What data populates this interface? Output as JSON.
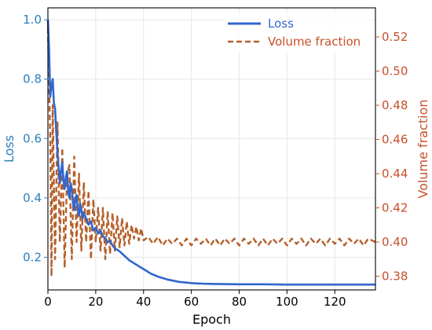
{
  "chart_data": {
    "type": "line",
    "xlabel": "Epoch",
    "ylabel_left": "Loss",
    "ylabel_right": "Volume fraction",
    "xlim": [
      0,
      137
    ],
    "ylim_left": [
      0.09,
      1.04
    ],
    "ylim_right": [
      0.372,
      0.537
    ],
    "xticks": [
      0,
      20,
      40,
      60,
      80,
      100,
      120
    ],
    "yticks_left": [
      0.2,
      0.4,
      0.6,
      0.8,
      1.0
    ],
    "yticks_right": [
      0.38,
      0.4,
      0.42,
      0.44,
      0.46,
      0.48,
      0.5,
      0.52
    ],
    "grid": true,
    "legend_position": "top-right",
    "colors": {
      "loss": "#3366cc",
      "volume": "#b5602b",
      "left_axis": "#2a7fb8",
      "right_axis": "#c8502a"
    },
    "series": [
      {
        "name": "Loss",
        "axis": "left",
        "style": "solid",
        "x": [
          0,
          0.5,
          1,
          1.5,
          2,
          2.5,
          3,
          3.5,
          4,
          4.5,
          5,
          5.5,
          6,
          6.5,
          7,
          7.5,
          8,
          8.5,
          9,
          9.5,
          10,
          10.5,
          11,
          11.5,
          12,
          12.5,
          13,
          13.5,
          14,
          14.5,
          15,
          16,
          17,
          18,
          19,
          20,
          21,
          22,
          23,
          24,
          25,
          26,
          27,
          28,
          29,
          30,
          32,
          34,
          36,
          38,
          40,
          43,
          46,
          50,
          55,
          60,
          65,
          70,
          80,
          90,
          100,
          110,
          120,
          130,
          137
        ],
        "y": [
          1.0,
          0.9,
          0.74,
          0.78,
          0.8,
          0.72,
          0.7,
          0.62,
          0.55,
          0.5,
          0.45,
          0.49,
          0.52,
          0.46,
          0.43,
          0.47,
          0.49,
          0.42,
          0.4,
          0.45,
          0.43,
          0.38,
          0.36,
          0.4,
          0.41,
          0.36,
          0.34,
          0.38,
          0.36,
          0.33,
          0.35,
          0.33,
          0.31,
          0.32,
          0.29,
          0.3,
          0.28,
          0.29,
          0.27,
          0.265,
          0.25,
          0.255,
          0.24,
          0.23,
          0.225,
          0.22,
          0.205,
          0.19,
          0.18,
          0.17,
          0.16,
          0.145,
          0.135,
          0.125,
          0.117,
          0.113,
          0.111,
          0.11,
          0.109,
          0.109,
          0.108,
          0.108,
          0.108,
          0.108,
          0.108
        ]
      },
      {
        "name": "Volume fraction",
        "axis": "right",
        "style": "dashed",
        "x": [
          0,
          1,
          1.5,
          2,
          3,
          4,
          5,
          6,
          7,
          8,
          9,
          10,
          11,
          12,
          13,
          14,
          15,
          16,
          17,
          18,
          19,
          20,
          21,
          22,
          23,
          24,
          25,
          26,
          27,
          28,
          29,
          30,
          31,
          32,
          33,
          34,
          35,
          36,
          37,
          38,
          39,
          40,
          42,
          44,
          46,
          48,
          50,
          52,
          54,
          56,
          58,
          60,
          62,
          64,
          66,
          68,
          70,
          72,
          74,
          76,
          78,
          80,
          82,
          84,
          86,
          88,
          90,
          92,
          94,
          96,
          98,
          100,
          102,
          104,
          106,
          108,
          110,
          112,
          114,
          116,
          118,
          120,
          122,
          124,
          126,
          128,
          130,
          132,
          134,
          137
        ],
        "y": [
          0.525,
          0.46,
          0.38,
          0.48,
          0.39,
          0.47,
          0.4,
          0.455,
          0.385,
          0.44,
          0.445,
          0.39,
          0.45,
          0.4,
          0.44,
          0.395,
          0.435,
          0.4,
          0.43,
          0.39,
          0.425,
          0.4,
          0.42,
          0.395,
          0.42,
          0.39,
          0.418,
          0.393,
          0.417,
          0.395,
          0.415,
          0.397,
          0.414,
          0.398,
          0.412,
          0.399,
          0.41,
          0.402,
          0.409,
          0.401,
          0.408,
          0.401,
          0.403,
          0.399,
          0.403,
          0.398,
          0.402,
          0.399,
          0.402,
          0.398,
          0.402,
          0.398,
          0.402,
          0.399,
          0.402,
          0.398,
          0.402,
          0.398,
          0.402,
          0.399,
          0.402,
          0.398,
          0.402,
          0.399,
          0.402,
          0.398,
          0.402,
          0.398,
          0.402,
          0.399,
          0.402,
          0.398,
          0.402,
          0.399,
          0.402,
          0.398,
          0.402,
          0.399,
          0.402,
          0.398,
          0.402,
          0.399,
          0.402,
          0.398,
          0.402,
          0.399,
          0.402,
          0.398,
          0.402,
          0.4
        ]
      }
    ]
  }
}
